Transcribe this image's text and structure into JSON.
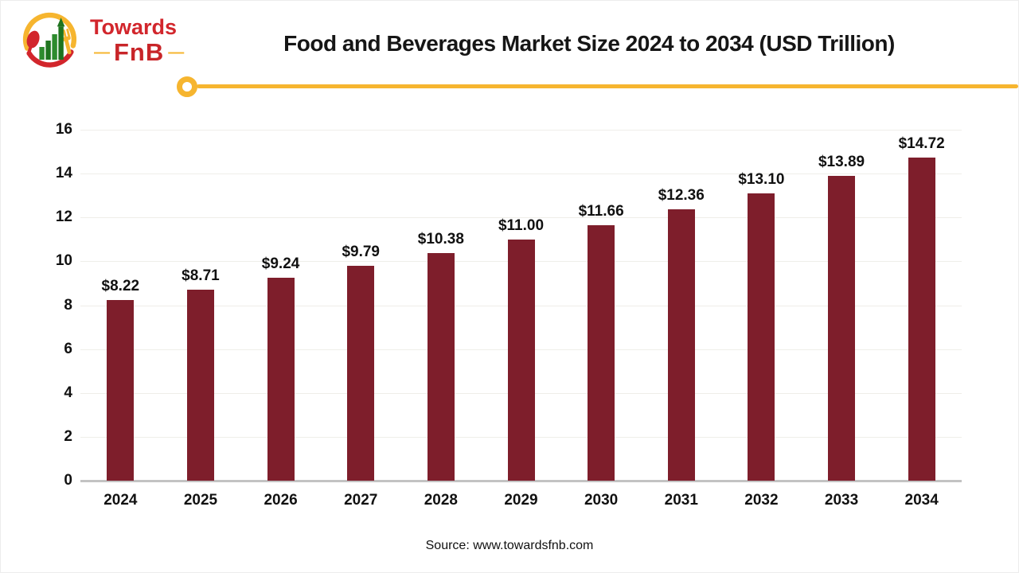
{
  "logo": {
    "line1": "Towards",
    "line2": "FnB",
    "dash": "—",
    "icon": "towardsfnb-logo-icon"
  },
  "header": {
    "title": "Food and Beverages Market Size 2024 to 2034 (USD Trillion)"
  },
  "footer": {
    "source": "Source: www.towardsfnb.com"
  },
  "colors": {
    "bar": "#7e1e2b",
    "accent": "#f6b52f",
    "logo_red": "#d2262c",
    "logo_green": "#2e8b2e",
    "axis_line": "#c3c3c3",
    "gridline": "#efeee9"
  },
  "chart_data": {
    "type": "bar",
    "title": "Food and Beverages Market Size 2024 to 2034 (USD Trillion)",
    "categories": [
      "2024",
      "2025",
      "2026",
      "2027",
      "2028",
      "2029",
      "2030",
      "2031",
      "2032",
      "2033",
      "2034"
    ],
    "values": [
      8.22,
      8.71,
      9.24,
      9.79,
      10.38,
      11.0,
      11.66,
      12.36,
      13.1,
      13.89,
      14.72
    ],
    "value_labels": [
      "$8.22",
      "$8.71",
      "$9.24",
      "$9.79",
      "$10.38",
      "$11.00",
      "$11.66",
      "$12.36",
      "$13.10",
      "$13.89",
      "$14.72"
    ],
    "xlabel": "",
    "ylabel": "",
    "yticks": [
      0,
      2,
      4,
      6,
      8,
      10,
      12,
      14,
      16
    ],
    "ylim": [
      0,
      16
    ],
    "grid": true,
    "legend": "none",
    "bar_color": "#7e1e2b"
  }
}
